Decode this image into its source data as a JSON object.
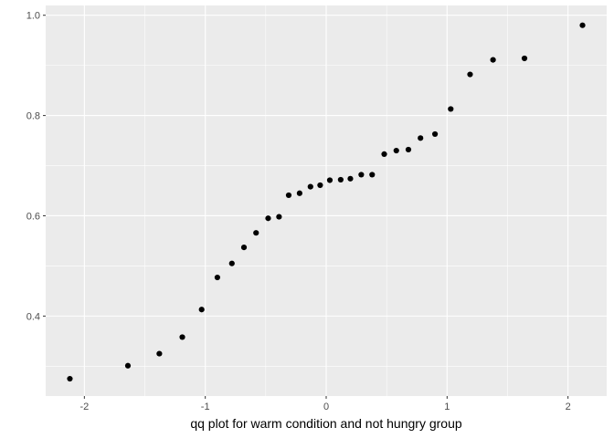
{
  "chart_data": {
    "type": "scatter",
    "title": "",
    "xlabel": "qq plot for warm condition and not hungry group",
    "ylabel": "",
    "xlim": [
      -2.32,
      2.32
    ],
    "ylim": [
      0.2405,
      1.0195
    ],
    "x_ticks": [
      -2,
      -1,
      0,
      1,
      2
    ],
    "x_tick_labels": [
      "-2",
      "-1",
      "0",
      "1",
      "2"
    ],
    "y_ticks": [
      0.4,
      0.6,
      0.8,
      1.0
    ],
    "y_tick_labels": [
      "0.4",
      "0.6",
      "0.8",
      "1.0"
    ],
    "grid": true,
    "legend": "none",
    "colors": {
      "panel_background": "#ebebeb",
      "grid_major": "#ffffff",
      "point": "#000000",
      "tick_label": "#4d4d4d"
    },
    "points": [
      {
        "x": -2.12,
        "y": 0.275
      },
      {
        "x": -1.64,
        "y": 0.301
      },
      {
        "x": -1.38,
        "y": 0.325
      },
      {
        "x": -1.19,
        "y": 0.358
      },
      {
        "x": -1.03,
        "y": 0.413
      },
      {
        "x": -0.9,
        "y": 0.477
      },
      {
        "x": -0.78,
        "y": 0.505
      },
      {
        "x": -0.68,
        "y": 0.537
      },
      {
        "x": -0.58,
        "y": 0.566
      },
      {
        "x": -0.48,
        "y": 0.595
      },
      {
        "x": -0.39,
        "y": 0.598
      },
      {
        "x": -0.31,
        "y": 0.641
      },
      {
        "x": -0.22,
        "y": 0.645
      },
      {
        "x": -0.13,
        "y": 0.658
      },
      {
        "x": -0.05,
        "y": 0.661
      },
      {
        "x": 0.03,
        "y": 0.671
      },
      {
        "x": 0.12,
        "y": 0.672
      },
      {
        "x": 0.2,
        "y": 0.674
      },
      {
        "x": 0.29,
        "y": 0.682
      },
      {
        "x": 0.38,
        "y": 0.682
      },
      {
        "x": 0.48,
        "y": 0.723
      },
      {
        "x": 0.58,
        "y": 0.73
      },
      {
        "x": 0.68,
        "y": 0.732
      },
      {
        "x": 0.78,
        "y": 0.755
      },
      {
        "x": 0.9,
        "y": 0.763
      },
      {
        "x": 1.03,
        "y": 0.813
      },
      {
        "x": 1.19,
        "y": 0.882
      },
      {
        "x": 1.38,
        "y": 0.911
      },
      {
        "x": 1.64,
        "y": 0.914
      },
      {
        "x": 2.12,
        "y": 0.98
      }
    ]
  }
}
